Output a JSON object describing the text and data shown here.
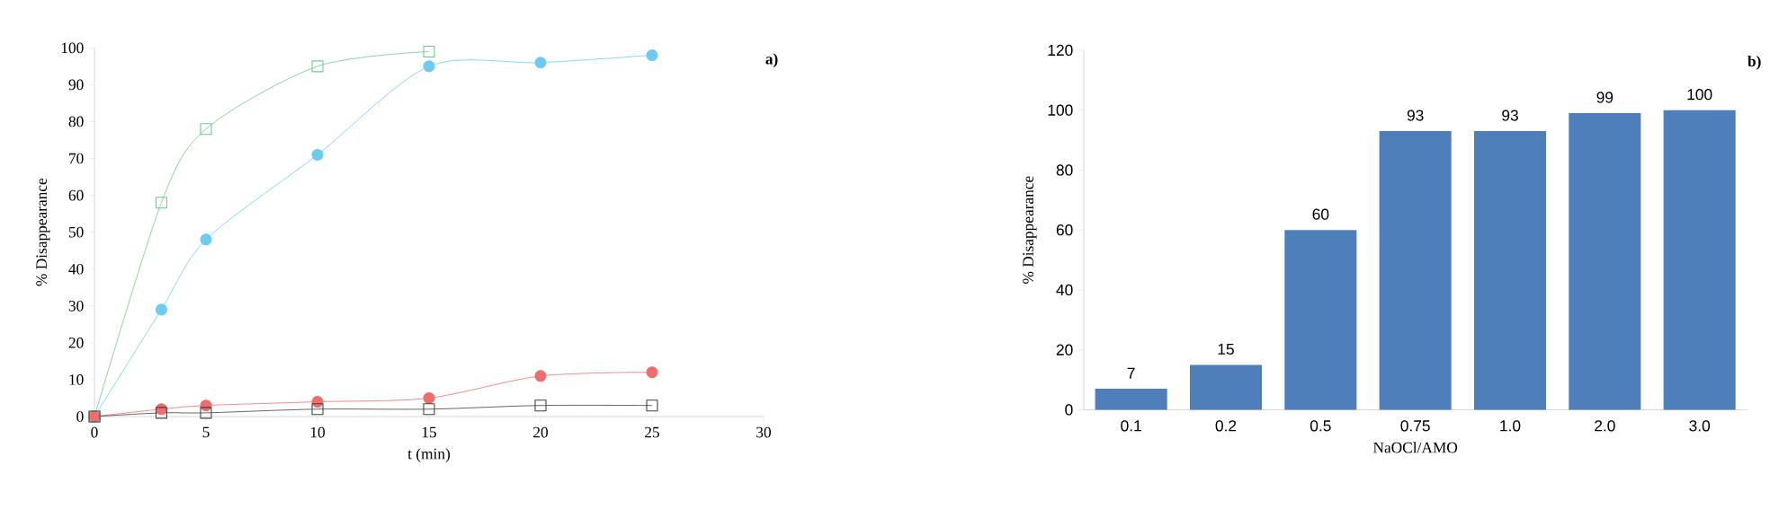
{
  "chart_data": [
    {
      "type": "line",
      "xlabel": "t (min)",
      "ylabel": "% Disappearance",
      "annotations": [
        "a)"
      ],
      "xlim": [
        0,
        30
      ],
      "xticks": [
        0,
        5,
        10,
        15,
        20,
        25,
        30
      ],
      "ylim": [
        0,
        100
      ],
      "yticks": [
        0,
        10,
        20,
        30,
        40,
        50,
        60,
        70,
        80,
        90,
        100
      ],
      "grid": false,
      "line_style": "solid",
      "series": [
        {
          "color": "#6cc98a",
          "marker": "square",
          "x": [
            0,
            3,
            5,
            10,
            15
          ],
          "values": [
            0,
            58,
            78,
            95,
            99
          ]
        },
        {
          "color": "#6ccbef",
          "marker": "circle",
          "x": [
            0,
            3,
            5,
            10,
            15,
            20,
            25
          ],
          "values": [
            0,
            29,
            48,
            71,
            95,
            96,
            98
          ]
        },
        {
          "color": "#ee6e6e",
          "marker": "circle",
          "x": [
            0,
            3,
            5,
            10,
            15,
            20,
            25
          ],
          "values": [
            0,
            2,
            3,
            4,
            5,
            11,
            12
          ]
        },
        {
          "color": "#404040",
          "marker": "square",
          "x": [
            0,
            3,
            5,
            10,
            15,
            20,
            25
          ],
          "values": [
            0,
            1,
            1,
            2,
            2,
            3,
            3
          ]
        }
      ]
    },
    {
      "type": "bar",
      "xlabel": "NaOCl/AMO",
      "ylabel": "% Disappearance",
      "annotations": [
        "b)"
      ],
      "categories": [
        "0.1",
        "0.2",
        "0.5",
        "0.75",
        "1.0",
        "2.0",
        "3.0"
      ],
      "values": [
        7,
        15,
        60,
        93,
        93,
        99,
        100
      ],
      "color": "#4f7fba",
      "ylim": [
        0,
        120
      ],
      "yticks": [
        0,
        20,
        40,
        60,
        80,
        100,
        120
      ],
      "grid": false,
      "data_labels": true
    }
  ]
}
